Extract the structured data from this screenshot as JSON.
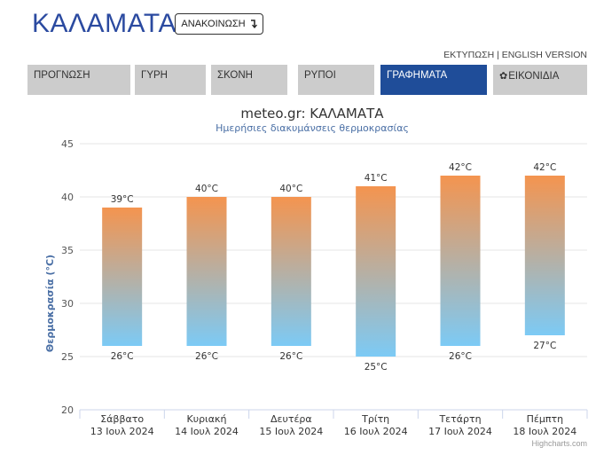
{
  "header": {
    "city": "ΚΑΛΑΜΑΤΑ",
    "announce_label": "ΑΝΑΚΟΙΝΩΣΗ",
    "print_label": "ΕΚΤΥΠΩΣΗ",
    "separator": " | ",
    "english_label": "ENGLISH VERSION"
  },
  "tabs": [
    {
      "label": "ΠΡΟΓΝΩΣΗ",
      "active": false
    },
    {
      "label": "ΓΥΡΗ",
      "active": false
    },
    {
      "label": "ΣΚΟΝΗ",
      "active": false
    },
    {
      "label": "ΡΥΠΟΙ",
      "active": false
    },
    {
      "label": "ΓΡΑΦΗΜΑΤΑ",
      "active": true
    },
    {
      "label": "ΕΙΚΟΝΙΔΙΑ",
      "active": false,
      "icon": "gear-icon"
    }
  ],
  "chart_data": {
    "type": "bar",
    "title": "meteo.gr: ΚΑΛΑΜΑΤΑ",
    "subtitle": "Ημερήσιες διακυμάνσεις θερμοκρασίας",
    "ylabel": "Θερμοκρασία (°C)",
    "ylim": [
      20,
      45
    ],
    "yticks": [
      20,
      25,
      30,
      35,
      40,
      45
    ],
    "grid": true,
    "categories": [
      {
        "day": "Σάββατο",
        "date": "13 Ιουλ 2024"
      },
      {
        "day": "Κυριακή",
        "date": "14 Ιουλ 2024"
      },
      {
        "day": "Δευτέρα",
        "date": "15 Ιουλ 2024"
      },
      {
        "day": "Τρίτη",
        "date": "16 Ιουλ 2024"
      },
      {
        "day": "Τετάρτη",
        "date": "17 Ιουλ 2024"
      },
      {
        "day": "Πέμπτη",
        "date": "18 Ιουλ 2024"
      }
    ],
    "series": [
      {
        "low": 26,
        "high": 39
      },
      {
        "low": 26,
        "high": 40
      },
      {
        "low": 26,
        "high": 40
      },
      {
        "low": 25,
        "high": 41
      },
      {
        "low": 26,
        "high": 42
      },
      {
        "low": 27,
        "high": 42
      }
    ],
    "unit": "°C",
    "colors": {
      "top": "#f4944f",
      "bottom": "#7ccaf5",
      "grid": "#e6e6e6",
      "axis": "#ccd6eb",
      "ylabel": "#4a6fa5"
    },
    "credit": "Highcharts.com"
  }
}
